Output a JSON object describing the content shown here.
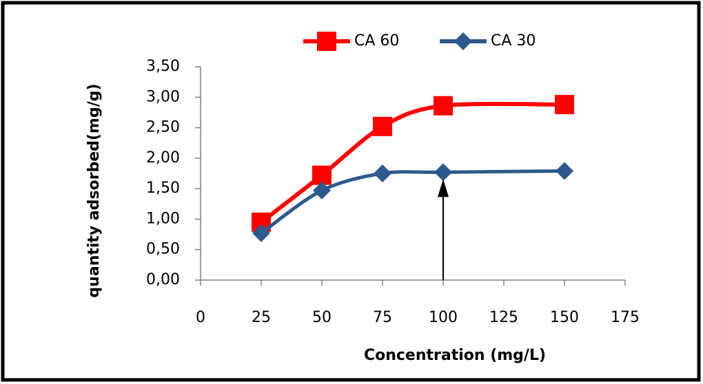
{
  "chart_data": {
    "type": "line",
    "x_label": "Concentration (mg/L)",
    "y_label": "quantity adsorbed(mg/g)",
    "x": [
      25,
      50,
      75,
      100,
      150
    ],
    "series": [
      {
        "name": "CA 60",
        "color": "#ff0000",
        "marker": "square",
        "values": [
          0.95,
          1.72,
          2.52,
          2.86,
          2.88
        ]
      },
      {
        "name": "CA 30",
        "color": "#2c5a8c",
        "marker": "diamond",
        "values": [
          0.77,
          1.47,
          1.75,
          1.77,
          1.79
        ]
      }
    ],
    "xlim": [
      0,
      175
    ],
    "xticks": [
      0,
      25,
      50,
      75,
      100,
      125,
      150,
      175
    ],
    "ylim": [
      0,
      3.5
    ],
    "yticks": [
      {
        "value": 0,
        "label": "0,00"
      },
      {
        "value": 0.5,
        "label": "0,50"
      },
      {
        "value": 1,
        "label": "1,00"
      },
      {
        "value": 1.5,
        "label": "1,50"
      },
      {
        "value": 2,
        "label": "2,00"
      },
      {
        "value": 2.5,
        "label": "2,50"
      },
      {
        "value": 3,
        "label": "3,00"
      },
      {
        "value": 3.5,
        "label": "3,50"
      }
    ],
    "legend": "top"
  }
}
